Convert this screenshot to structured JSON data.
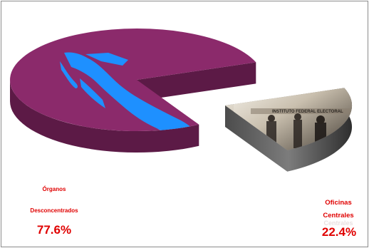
{
  "chart_data": {
    "type": "pie",
    "title": "",
    "categories": [
      "Órganos Desconcentrados",
      "Oficinas Centrales"
    ],
    "values": [
      77.6,
      22.4
    ],
    "value_labels": [
      "77.6%",
      "22.4%"
    ],
    "colors": [
      "#8b2a6b",
      "#6e6e6e"
    ],
    "exploded": "Oficinas Centrales",
    "legend": "none"
  },
  "labels": {
    "slice0": {
      "line1": "Órganos",
      "line2": "Desconcentrados",
      "pct": "77.6%"
    },
    "slice1": {
      "line1": "Oficinas",
      "line2": "Centrales",
      "pct": "22.4%"
    }
  },
  "photo_sign": "INSTITUTO FEDERAL ELECTORAL",
  "colors": {
    "pie_top": "#8b2a6b",
    "pie_side": "#5c1a46",
    "map_blue": "#1e90ff",
    "label_red": "#e00000"
  }
}
